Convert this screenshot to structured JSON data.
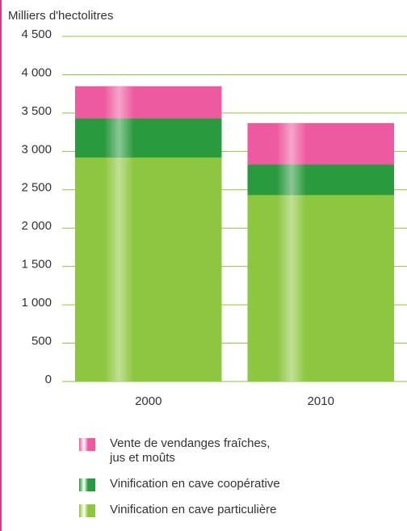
{
  "chart_data": {
    "type": "stacked_bar",
    "y_axis_label": "Milliers d'hectolitres",
    "categories": [
      "2000",
      "2010"
    ],
    "series": [
      {
        "name": "Vinification en cave particulière",
        "color": "#8dc63f",
        "values": [
          2920,
          2430
        ]
      },
      {
        "name": "Vinification en cave coopérative",
        "color": "#2a9a3e",
        "values": [
          510,
          400
        ]
      },
      {
        "name": "Vente de vendanges fraîches, jus et moûts",
        "color": "#ee5a9f",
        "values": [
          420,
          540
        ]
      }
    ],
    "ylim": [
      0,
      4500
    ],
    "yticks": [
      0,
      500,
      {
        "value": 1000,
        "label": "1 000"
      },
      {
        "value": 1500,
        "label": "1 500"
      },
      {
        "value": 2000,
        "label": "2 000"
      },
      {
        "value": 2500,
        "label": "2 500"
      },
      {
        "value": 3000,
        "label": "3 000"
      },
      {
        "value": 3500,
        "label": "3 500"
      },
      {
        "value": 4000,
        "label": "4 000"
      },
      {
        "value": 4500,
        "label": "4 500"
      }
    ],
    "grid": true,
    "grid_color": "#8dc63f"
  }
}
